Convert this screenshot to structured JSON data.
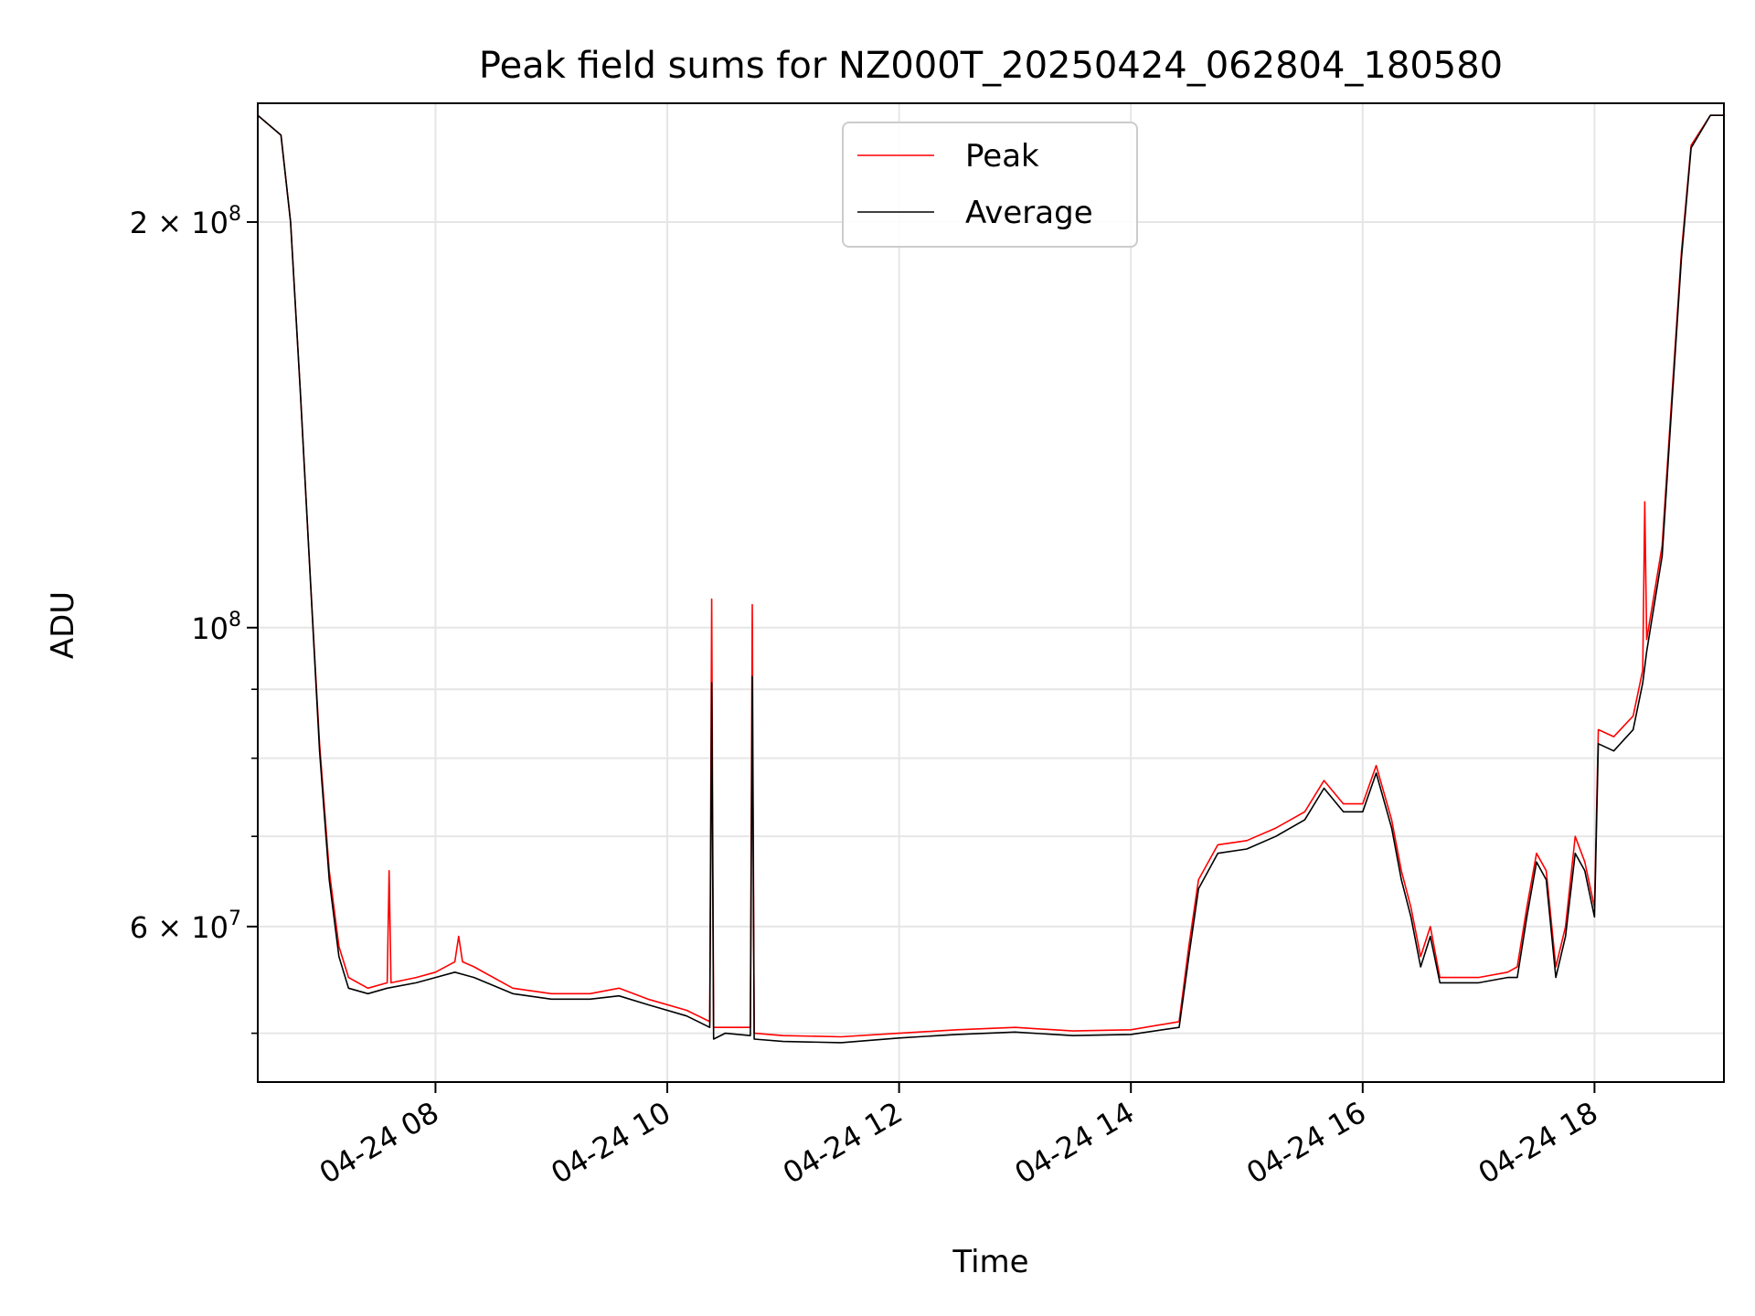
{
  "chart_data": {
    "type": "line",
    "title": "Peak field sums for NZ000T_20250424_062804_180580",
    "xlabel": "Time",
    "ylabel": "ADU",
    "y_scale": "log",
    "ylim": [
      46000000,
      245000000
    ],
    "xlim": [
      "2025-04-24 06:28",
      "2025-04-24 19:07"
    ],
    "grid": true,
    "legend_position": "top-center",
    "x_ticks": [
      {
        "t": "2025-04-24 08:00",
        "label": "04-24 08"
      },
      {
        "t": "2025-04-24 10:00",
        "label": "04-24 10"
      },
      {
        "t": "2025-04-24 12:00",
        "label": "04-24 12"
      },
      {
        "t": "2025-04-24 14:00",
        "label": "04-24 14"
      },
      {
        "t": "2025-04-24 16:00",
        "label": "04-24 16"
      },
      {
        "t": "2025-04-24 18:00",
        "label": "04-24 18"
      }
    ],
    "y_major_ticks": [
      {
        "value": 200000000,
        "mantissa": "2",
        "exp": "8"
      },
      {
        "value": 100000000,
        "mantissa": "",
        "exp": "8"
      },
      {
        "value": 60000000,
        "mantissa": "6",
        "exp": "7"
      }
    ],
    "y_minor_ticks": [
      50000000,
      70000000,
      80000000,
      90000000
    ],
    "series": [
      {
        "name": "Peak",
        "color": "#ff0000",
        "points": [
          [
            "2025-04-24 06:28",
            240000000
          ],
          [
            "2025-04-24 06:40",
            232000000
          ],
          [
            "2025-04-24 06:45",
            200000000
          ],
          [
            "2025-04-24 06:50",
            150000000
          ],
          [
            "2025-04-24 06:55",
            110000000
          ],
          [
            "2025-04-24 07:00",
            82000000
          ],
          [
            "2025-04-24 07:05",
            66000000
          ],
          [
            "2025-04-24 07:10",
            58000000
          ],
          [
            "2025-04-24 07:15",
            55000000
          ],
          [
            "2025-04-24 07:25",
            54000000
          ],
          [
            "2025-04-24 07:35",
            54500000
          ],
          [
            "2025-04-24 07:36",
            66000000
          ],
          [
            "2025-04-24 07:37",
            54500000
          ],
          [
            "2025-04-24 07:50",
            55000000
          ],
          [
            "2025-04-24 08:00",
            55500000
          ],
          [
            "2025-04-24 08:10",
            56500000
          ],
          [
            "2025-04-24 08:12",
            59000000
          ],
          [
            "2025-04-24 08:14",
            56500000
          ],
          [
            "2025-04-24 08:20",
            56000000
          ],
          [
            "2025-04-24 08:40",
            54000000
          ],
          [
            "2025-04-24 09:00",
            53500000
          ],
          [
            "2025-04-24 09:20",
            53500000
          ],
          [
            "2025-04-24 09:35",
            54000000
          ],
          [
            "2025-04-24 09:50",
            53000000
          ],
          [
            "2025-04-24 10:10",
            52000000
          ],
          [
            "2025-04-24 10:22",
            51000000
          ],
          [
            "2025-04-24 10:23",
            105000000
          ],
          [
            "2025-04-24 10:24",
            50500000
          ],
          [
            "2025-04-24 10:30",
            50500000
          ],
          [
            "2025-04-24 10:43",
            50500000
          ],
          [
            "2025-04-24 10:44",
            104000000
          ],
          [
            "2025-04-24 10:45",
            50000000
          ],
          [
            "2025-04-24 11:00",
            49800000
          ],
          [
            "2025-04-24 11:30",
            49700000
          ],
          [
            "2025-04-24 12:00",
            50000000
          ],
          [
            "2025-04-24 12:30",
            50300000
          ],
          [
            "2025-04-24 13:00",
            50500000
          ],
          [
            "2025-04-24 13:30",
            50200000
          ],
          [
            "2025-04-24 14:00",
            50300000
          ],
          [
            "2025-04-24 14:25",
            51000000
          ],
          [
            "2025-04-24 14:30",
            58000000
          ],
          [
            "2025-04-24 14:35",
            65000000
          ],
          [
            "2025-04-24 14:45",
            69000000
          ],
          [
            "2025-04-24 15:00",
            69500000
          ],
          [
            "2025-04-24 15:15",
            71000000
          ],
          [
            "2025-04-24 15:30",
            73000000
          ],
          [
            "2025-04-24 15:40",
            77000000
          ],
          [
            "2025-04-24 15:50",
            74000000
          ],
          [
            "2025-04-24 16:00",
            74000000
          ],
          [
            "2025-04-24 16:07",
            79000000
          ],
          [
            "2025-04-24 16:15",
            72000000
          ],
          [
            "2025-04-24 16:20",
            66000000
          ],
          [
            "2025-04-24 16:25",
            62000000
          ],
          [
            "2025-04-24 16:30",
            57000000
          ],
          [
            "2025-04-24 16:35",
            60000000
          ],
          [
            "2025-04-24 16:40",
            55000000
          ],
          [
            "2025-04-24 17:00",
            55000000
          ],
          [
            "2025-04-24 17:15",
            55500000
          ],
          [
            "2025-04-24 17:20",
            56000000
          ],
          [
            "2025-04-24 17:25",
            62000000
          ],
          [
            "2025-04-24 17:30",
            68000000
          ],
          [
            "2025-04-24 17:35",
            66000000
          ],
          [
            "2025-04-24 17:40",
            56000000
          ],
          [
            "2025-04-24 17:45",
            60000000
          ],
          [
            "2025-04-24 17:50",
            70000000
          ],
          [
            "2025-04-24 17:55",
            67000000
          ],
          [
            "2025-04-24 18:00",
            62000000
          ],
          [
            "2025-04-24 18:02",
            84000000
          ],
          [
            "2025-04-24 18:10",
            83000000
          ],
          [
            "2025-04-24 18:20",
            86000000
          ],
          [
            "2025-04-24 18:25",
            93000000
          ],
          [
            "2025-04-24 18:26",
            124000000
          ],
          [
            "2025-04-24 18:27",
            98000000
          ],
          [
            "2025-04-24 18:35",
            115000000
          ],
          [
            "2025-04-24 18:40",
            148000000
          ],
          [
            "2025-04-24 18:45",
            190000000
          ],
          [
            "2025-04-24 18:50",
            228000000
          ],
          [
            "2025-04-24 19:00",
            240000000
          ],
          [
            "2025-04-24 19:07",
            240000000
          ]
        ]
      },
      {
        "name": "Average",
        "color": "#000000",
        "points": [
          [
            "2025-04-24 06:28",
            240000000
          ],
          [
            "2025-04-24 06:40",
            232000000
          ],
          [
            "2025-04-24 06:45",
            200000000
          ],
          [
            "2025-04-24 06:50",
            150000000
          ],
          [
            "2025-04-24 06:55",
            110000000
          ],
          [
            "2025-04-24 07:00",
            81000000
          ],
          [
            "2025-04-24 07:05",
            65000000
          ],
          [
            "2025-04-24 07:10",
            57000000
          ],
          [
            "2025-04-24 07:15",
            54000000
          ],
          [
            "2025-04-24 07:25",
            53500000
          ],
          [
            "2025-04-24 07:35",
            54000000
          ],
          [
            "2025-04-24 07:50",
            54500000
          ],
          [
            "2025-04-24 08:00",
            55000000
          ],
          [
            "2025-04-24 08:10",
            55500000
          ],
          [
            "2025-04-24 08:20",
            55000000
          ],
          [
            "2025-04-24 08:40",
            53500000
          ],
          [
            "2025-04-24 09:00",
            53000000
          ],
          [
            "2025-04-24 09:20",
            53000000
          ],
          [
            "2025-04-24 09:35",
            53300000
          ],
          [
            "2025-04-24 09:50",
            52500000
          ],
          [
            "2025-04-24 10:10",
            51500000
          ],
          [
            "2025-04-24 10:22",
            50500000
          ],
          [
            "2025-04-24 10:23",
            91000000
          ],
          [
            "2025-04-24 10:24",
            49500000
          ],
          [
            "2025-04-24 10:30",
            50000000
          ],
          [
            "2025-04-24 10:43",
            49800000
          ],
          [
            "2025-04-24 10:44",
            92000000
          ],
          [
            "2025-04-24 10:45",
            49500000
          ],
          [
            "2025-04-24 11:00",
            49300000
          ],
          [
            "2025-04-24 11:30",
            49200000
          ],
          [
            "2025-04-24 12:00",
            49600000
          ],
          [
            "2025-04-24 12:30",
            49900000
          ],
          [
            "2025-04-24 13:00",
            50100000
          ],
          [
            "2025-04-24 13:30",
            49800000
          ],
          [
            "2025-04-24 14:00",
            49900000
          ],
          [
            "2025-04-24 14:25",
            50500000
          ],
          [
            "2025-04-24 14:30",
            57000000
          ],
          [
            "2025-04-24 14:35",
            64000000
          ],
          [
            "2025-04-24 14:45",
            68000000
          ],
          [
            "2025-04-24 15:00",
            68500000
          ],
          [
            "2025-04-24 15:15",
            70000000
          ],
          [
            "2025-04-24 15:30",
            72000000
          ],
          [
            "2025-04-24 15:40",
            76000000
          ],
          [
            "2025-04-24 15:50",
            73000000
          ],
          [
            "2025-04-24 16:00",
            73000000
          ],
          [
            "2025-04-24 16:07",
            78000000
          ],
          [
            "2025-04-24 16:15",
            71000000
          ],
          [
            "2025-04-24 16:20",
            65000000
          ],
          [
            "2025-04-24 16:25",
            61000000
          ],
          [
            "2025-04-24 16:30",
            56000000
          ],
          [
            "2025-04-24 16:35",
            59000000
          ],
          [
            "2025-04-24 16:40",
            54500000
          ],
          [
            "2025-04-24 17:00",
            54500000
          ],
          [
            "2025-04-24 17:15",
            55000000
          ],
          [
            "2025-04-24 17:20",
            55000000
          ],
          [
            "2025-04-24 17:25",
            61000000
          ],
          [
            "2025-04-24 17:30",
            67000000
          ],
          [
            "2025-04-24 17:35",
            65000000
          ],
          [
            "2025-04-24 17:40",
            55000000
          ],
          [
            "2025-04-24 17:45",
            59000000
          ],
          [
            "2025-04-24 17:50",
            68000000
          ],
          [
            "2025-04-24 17:55",
            66000000
          ],
          [
            "2025-04-24 18:00",
            61000000
          ],
          [
            "2025-04-24 18:02",
            82000000
          ],
          [
            "2025-04-24 18:10",
            81000000
          ],
          [
            "2025-04-24 18:20",
            84000000
          ],
          [
            "2025-04-24 18:25",
            91000000
          ],
          [
            "2025-04-24 18:27",
            96000000
          ],
          [
            "2025-04-24 18:35",
            113000000
          ],
          [
            "2025-04-24 18:40",
            146000000
          ],
          [
            "2025-04-24 18:45",
            188000000
          ],
          [
            "2025-04-24 18:50",
            227000000
          ],
          [
            "2025-04-24 19:00",
            240000000
          ],
          [
            "2025-04-24 19:07",
            240000000
          ]
        ]
      }
    ]
  }
}
